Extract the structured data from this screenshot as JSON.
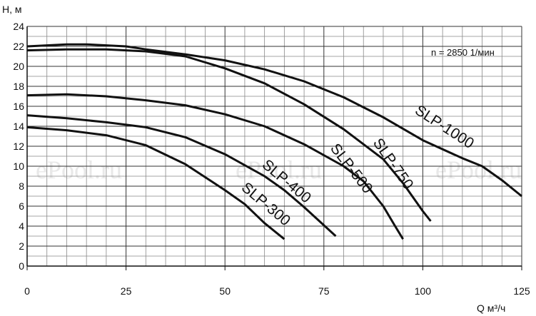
{
  "chart_data": {
    "type": "line",
    "x_label": "Q м³/ч",
    "y_label": "Н, м",
    "annotation": "n = 2850 1/мин",
    "watermark": "ePool.ru",
    "xlim": [
      0,
      125
    ],
    "ylim": [
      0,
      24
    ],
    "xticks": [
      0,
      25,
      50,
      75,
      100,
      125
    ],
    "yticks": [
      0,
      2,
      4,
      6,
      8,
      10,
      12,
      14,
      16,
      18,
      20,
      22,
      24
    ],
    "x_minor_grid": [
      5,
      10,
      15,
      20,
      30,
      35,
      40,
      45,
      55,
      60,
      65,
      70,
      80,
      85,
      90,
      95,
      105,
      110,
      115,
      120
    ],
    "y_minor_grid": [
      1,
      3,
      5,
      7,
      9,
      11,
      13,
      15,
      17,
      19,
      21,
      23
    ],
    "grid": true,
    "series": [
      {
        "name": "SLP-1000",
        "color": "#111111",
        "x": [
          0,
          10,
          15,
          25,
          30,
          40,
          50,
          60,
          70,
          80,
          90,
          100,
          110,
          115,
          120,
          125
        ],
        "values": [
          22.0,
          22.2,
          22.2,
          22.0,
          21.7,
          21.2,
          20.6,
          19.7,
          18.5,
          16.9,
          14.9,
          12.6,
          10.8,
          10.0,
          8.6,
          7.0
        ]
      },
      {
        "name": "SLP-750",
        "color": "#111111",
        "x": [
          0,
          10,
          20,
          30,
          40,
          50,
          60,
          70,
          80,
          90,
          95,
          100,
          102
        ],
        "values": [
          21.6,
          21.7,
          21.7,
          21.5,
          21.0,
          19.8,
          18.3,
          16.2,
          13.7,
          10.7,
          8.3,
          5.5,
          4.5
        ]
      },
      {
        "name": "SLP-500",
        "color": "#111111",
        "x": [
          0,
          10,
          20,
          30,
          40,
          50,
          60,
          70,
          80,
          85,
          90,
          93,
          95
        ],
        "values": [
          17.1,
          17.2,
          17.0,
          16.6,
          16.1,
          15.2,
          14.0,
          12.2,
          10.0,
          8.5,
          6.0,
          4.0,
          2.7
        ]
      },
      {
        "name": "SLP-400",
        "color": "#111111",
        "x": [
          0,
          10,
          20,
          30,
          40,
          50,
          60,
          65,
          70,
          78
        ],
        "values": [
          15.1,
          14.8,
          14.4,
          13.9,
          12.9,
          11.2,
          9.0,
          7.6,
          5.9,
          3.0
        ]
      },
      {
        "name": "SLP-300",
        "color": "#111111",
        "x": [
          0,
          10,
          20,
          30,
          40,
          50,
          55,
          60,
          65
        ],
        "values": [
          13.9,
          13.6,
          13.1,
          12.1,
          10.2,
          7.6,
          6.2,
          4.3,
          2.7
        ]
      }
    ]
  }
}
